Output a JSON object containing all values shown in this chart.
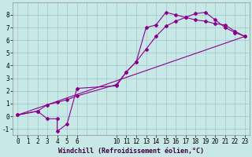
{
  "xlabel": "Windchill (Refroidissement éolien,°C)",
  "bg_color": "#c8e8e8",
  "grid_color": "#a0c8c8",
  "line_color": "#8b008b",
  "xlim": [
    -0.5,
    23.5
  ],
  "ylim": [
    -1.5,
    9.0
  ],
  "xticks": [
    0,
    1,
    2,
    3,
    4,
    5,
    6,
    10,
    11,
    12,
    13,
    14,
    15,
    16,
    17,
    18,
    19,
    20,
    21,
    22,
    23
  ],
  "yticks": [
    -1,
    0,
    1,
    2,
    3,
    4,
    5,
    6,
    7,
    8
  ],
  "line1_x": [
    0,
    2,
    3,
    4,
    4,
    5,
    6,
    10,
    11,
    12,
    13,
    14,
    15,
    16,
    17,
    18,
    19,
    20,
    21,
    22,
    23
  ],
  "line1_y": [
    0.1,
    0.4,
    -0.2,
    -0.2,
    -1.2,
    -0.6,
    2.2,
    2.4,
    3.5,
    4.3,
    7.0,
    7.2,
    8.2,
    8.0,
    7.8,
    7.6,
    7.5,
    7.3,
    7.2,
    6.7,
    6.3
  ],
  "line2_x": [
    0,
    2,
    3,
    4,
    5,
    6,
    10,
    11,
    12,
    13,
    14,
    15,
    16,
    17,
    18,
    19,
    20,
    21,
    22,
    23
  ],
  "line2_y": [
    0.1,
    0.4,
    0.9,
    1.1,
    1.3,
    1.6,
    2.5,
    3.5,
    4.3,
    5.3,
    6.3,
    7.1,
    7.5,
    7.8,
    8.1,
    8.2,
    7.6,
    7.0,
    6.6,
    6.3
  ],
  "line3_x": [
    0,
    23
  ],
  "line3_y": [
    0.1,
    6.3
  ],
  "marker_size": 2,
  "linewidth": 0.8,
  "tick_fontsize": 5.5,
  "xlabel_fontsize": 6.0
}
